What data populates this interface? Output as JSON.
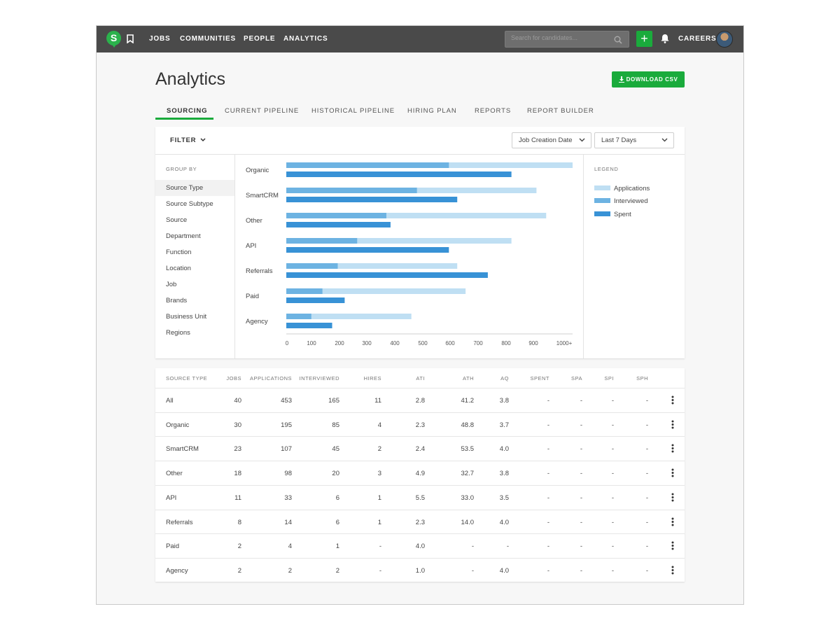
{
  "nav": {
    "logo_letter": "S",
    "items": [
      "JOBS",
      "COMMUNITIES",
      "PEOPLE",
      "ANALYTICS"
    ],
    "search_placeholder": "Search for candidates...",
    "add_label": "+",
    "careers_label": "CAREERS"
  },
  "page": {
    "title": "Analytics",
    "download_label": "DOWNLOAD CSV"
  },
  "tabs": [
    "SOURCING",
    "CURRENT PIPELINE",
    "HISTORICAL PIPELINE",
    "HIRING PLAN",
    "REPORTS",
    "REPORT BUILDER"
  ],
  "active_tab": "SOURCING",
  "filter": {
    "label": "FILTER",
    "date_field": "Job Creation Date",
    "date_range": "Last 7 Days"
  },
  "group_by": {
    "title": "GROUP BY",
    "items": [
      "Source Type",
      "Source Subtype",
      "Source",
      "Department",
      "Function",
      "Location",
      "Job",
      "Brands",
      "Business Unit",
      "Regions"
    ],
    "selected": "Source Type"
  },
  "legend": {
    "title": "LEGEND"
  },
  "colors": {
    "accent": "#1aab3c",
    "applications": "#bfdff3",
    "interviewed": "#6db3e2",
    "spent": "#3892d6"
  },
  "chart_data": {
    "type": "bar",
    "orientation": "horizontal",
    "categories": [
      "Organic",
      "SmartCRM",
      "Other",
      "API",
      "Referrals",
      "Paid",
      "Agency"
    ],
    "series": [
      {
        "name": "Applications",
        "values": [
          1030,
          900,
          935,
          810,
          615,
          645,
          450
        ]
      },
      {
        "name": "Interviewed",
        "values": [
          585,
          470,
          360,
          255,
          185,
          130,
          90
        ]
      },
      {
        "name": "Spent",
        "values": [
          810,
          615,
          375,
          585,
          725,
          210,
          165
        ]
      }
    ],
    "x_ticks": [
      "0",
      "100",
      "200",
      "300",
      "400",
      "500",
      "600",
      "700",
      "800",
      "900",
      "1000+"
    ],
    "xlim": [
      0,
      1030
    ],
    "legend_position": "right",
    "grid": false
  },
  "table": {
    "columns": [
      "SOURCE TYPE",
      "JOBS",
      "APPLICATIONS",
      "INTERVIEWED",
      "HIRES",
      "ATI",
      "ATH",
      "AQ",
      "SPENT",
      "SPA",
      "SPI",
      "SPH"
    ],
    "rows": [
      [
        "All",
        "40",
        "453",
        "165",
        "11",
        "2.8",
        "41.2",
        "3.8",
        "-",
        "-",
        "-",
        "-"
      ],
      [
        "Organic",
        "30",
        "195",
        "85",
        "4",
        "2.3",
        "48.8",
        "3.7",
        "-",
        "-",
        "-",
        "-"
      ],
      [
        "SmartCRM",
        "23",
        "107",
        "45",
        "2",
        "2.4",
        "53.5",
        "4.0",
        "-",
        "-",
        "-",
        "-"
      ],
      [
        "Other",
        "18",
        "98",
        "20",
        "3",
        "4.9",
        "32.7",
        "3.8",
        "-",
        "-",
        "-",
        "-"
      ],
      [
        "API",
        "11",
        "33",
        "6",
        "1",
        "5.5",
        "33.0",
        "3.5",
        "-",
        "-",
        "-",
        "-"
      ],
      [
        "Referrals",
        "8",
        "14",
        "6",
        "1",
        "2.3",
        "14.0",
        "4.0",
        "-",
        "-",
        "-",
        "-"
      ],
      [
        "Paid",
        "2",
        "4",
        "1",
        "-",
        "4.0",
        "-",
        "-",
        "-",
        "-",
        "-",
        "-"
      ],
      [
        "Agency",
        "2",
        "2",
        "2",
        "-",
        "1.0",
        "-",
        "4.0",
        "-",
        "-",
        "-",
        "-"
      ]
    ]
  }
}
